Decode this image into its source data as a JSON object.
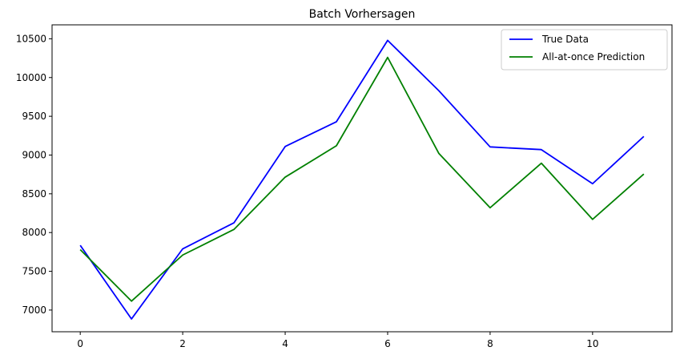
{
  "chart_data": {
    "type": "line",
    "title": "Batch Vorhersagen",
    "xlabel": "",
    "ylabel": "",
    "x": [
      0,
      1,
      2,
      3,
      4,
      5,
      6,
      7,
      8,
      9,
      10,
      11
    ],
    "xlim": [
      -0.55,
      11.55
    ],
    "ylim": [
      6720,
      10680
    ],
    "x_ticks": [
      0,
      2,
      4,
      6,
      8,
      10
    ],
    "y_ticks": [
      7000,
      7500,
      8000,
      8500,
      9000,
      9500,
      10000,
      10500
    ],
    "grid": false,
    "legend_position": "top-right",
    "series": [
      {
        "name": "True Data",
        "color": "#0000ff",
        "values": [
          7835,
          6885,
          7790,
          8125,
          9110,
          9430,
          10480,
          9830,
          9105,
          9070,
          8630,
          9240
        ]
      },
      {
        "name": "All-at-once Prediction",
        "color": "#008000",
        "values": [
          7780,
          7115,
          7710,
          8040,
          8715,
          9120,
          10260,
          9020,
          8320,
          8895,
          8170,
          8755
        ]
      }
    ]
  }
}
